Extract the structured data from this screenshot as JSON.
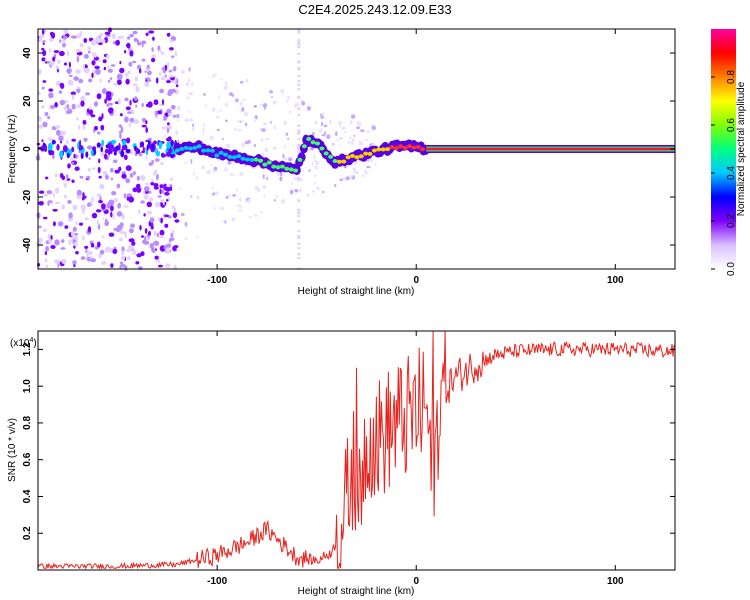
{
  "figure_title": "C2E4.2025.243.12.09.E33",
  "colors": {
    "signal_red": "#ee2222",
    "line_red": "#e8231e",
    "background": "#ffffff",
    "spectrogram_violet": "#6a00e0"
  },
  "chart_data": [
    {
      "type": "heatmap",
      "name": "spectrogram",
      "title": "C2E4.2025.243.12.09.E33",
      "xlabel": "Height of straight line (km)",
      "ylabel": "Frequency (Hz)",
      "xlim": [
        -190,
        130
      ],
      "ylim": [
        -50,
        50
      ],
      "xticks": [
        -100,
        0,
        100
      ],
      "xtick_labels": [
        "-100",
        "0",
        "100"
      ],
      "yticks": [
        -40,
        -20,
        0,
        20,
        40
      ],
      "ytick_labels": [
        "-40",
        "-20",
        "0",
        "20",
        "40"
      ],
      "carrier_frequency_hz": 0,
      "carrier_start_km": 5,
      "noise_region_km": [
        -190,
        -120
      ],
      "signal_track": [
        {
          "x": -120,
          "y": 0
        },
        {
          "x": -110,
          "y": 1
        },
        {
          "x": -100,
          "y": -2
        },
        {
          "x": -90,
          "y": -3
        },
        {
          "x": -80,
          "y": -5
        },
        {
          "x": -70,
          "y": -7
        },
        {
          "x": -60,
          "y": -9
        },
        {
          "x": -55,
          "y": 4
        },
        {
          "x": -48,
          "y": 1
        },
        {
          "x": -40,
          "y": -6
        },
        {
          "x": -35,
          "y": -4
        },
        {
          "x": -30,
          "y": -3
        },
        {
          "x": -20,
          "y": -1
        },
        {
          "x": -10,
          "y": 1
        },
        {
          "x": 0,
          "y": 1
        },
        {
          "x": 5,
          "y": 0
        }
      ],
      "colorbar": {
        "label": "Normalized spectral amplitude",
        "range": [
          0,
          1
        ],
        "ticks": [
          0.0,
          0.2,
          0.4,
          0.6,
          0.8
        ],
        "tick_labels": [
          "0.0",
          "0.2",
          "0.4",
          "0.6",
          "0.8"
        ],
        "colormap": [
          "#ffffff",
          "#d9c0ff",
          "#8000ff",
          "#0000ff",
          "#00c8ff",
          "#00ff80",
          "#80ff00",
          "#ffff00",
          "#ff8000",
          "#ff0000",
          "#ff00a0"
        ]
      }
    },
    {
      "type": "line",
      "name": "snr",
      "xlabel": "Height of straight line (km)",
      "ylabel": "SNR (10 * v/v)",
      "scale_label": "(x10",
      "scale_exponent": "4",
      "scale_suffix": ")",
      "xlim": [
        -190,
        130
      ],
      "ylim": [
        0,
        1.3
      ],
      "xticks": [
        -100,
        0,
        100
      ],
      "xtick_labels": [
        "-100",
        "0",
        "100"
      ],
      "yticks": [
        0.2,
        0.4,
        0.6,
        0.8,
        1.0,
        1.2
      ],
      "ytick_labels": [
        "0.2",
        "0.4",
        "0.6",
        "0.8",
        "1.0",
        "1.2"
      ],
      "series": [
        {
          "name": "SNR",
          "points": [
            {
              "x": -190,
              "y": 0.02
            },
            {
              "x": -150,
              "y": 0.02
            },
            {
              "x": -120,
              "y": 0.03
            },
            {
              "x": -100,
              "y": 0.08
            },
            {
              "x": -85,
              "y": 0.15
            },
            {
              "x": -75,
              "y": 0.22
            },
            {
              "x": -68,
              "y": 0.15
            },
            {
              "x": -60,
              "y": 0.07
            },
            {
              "x": -50,
              "y": 0.05
            },
            {
              "x": -42,
              "y": 0.1
            },
            {
              "x": -36,
              "y": 0.3
            },
            {
              "x": -32,
              "y": 0.55
            },
            {
              "x": -28,
              "y": 0.5
            },
            {
              "x": -24,
              "y": 0.75
            },
            {
              "x": -20,
              "y": 0.7
            },
            {
              "x": -15,
              "y": 0.75
            },
            {
              "x": -10,
              "y": 0.8
            },
            {
              "x": -5,
              "y": 0.82
            },
            {
              "x": 0,
              "y": 0.85
            },
            {
              "x": 5,
              "y": 0.9
            },
            {
              "x": 8,
              "y": 0.5
            },
            {
              "x": 12,
              "y": 0.95
            },
            {
              "x": 20,
              "y": 1.05
            },
            {
              "x": 30,
              "y": 1.12
            },
            {
              "x": 40,
              "y": 1.17
            },
            {
              "x": 50,
              "y": 1.19
            },
            {
              "x": 70,
              "y": 1.2
            },
            {
              "x": 100,
              "y": 1.2
            },
            {
              "x": 130,
              "y": 1.19
            }
          ]
        }
      ]
    }
  ]
}
